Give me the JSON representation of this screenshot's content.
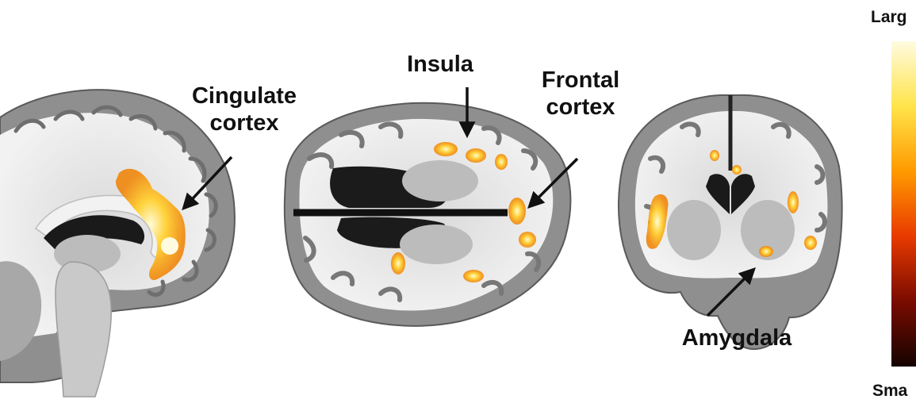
{
  "labels": {
    "cingulate": [
      "Cingulate",
      "cortex"
    ],
    "insula": "Insula",
    "frontal": [
      "Frontal",
      "cortex"
    ],
    "amygdala": "Amygdala"
  },
  "colorbar": {
    "top_label": "Larg",
    "bottom_label": "Sma",
    "colors": [
      "#fffbe0",
      "#ffe44a",
      "#ff9a00",
      "#e83a00",
      "#7a0b00",
      "#150300"
    ]
  },
  "colors": {
    "activation_hot": "#ffe45a",
    "activation_mid": "#ffae1a",
    "activation_low": "#e86e00",
    "brain_gray": "#9d9d9d",
    "white_matter": "#e3e3e3"
  }
}
